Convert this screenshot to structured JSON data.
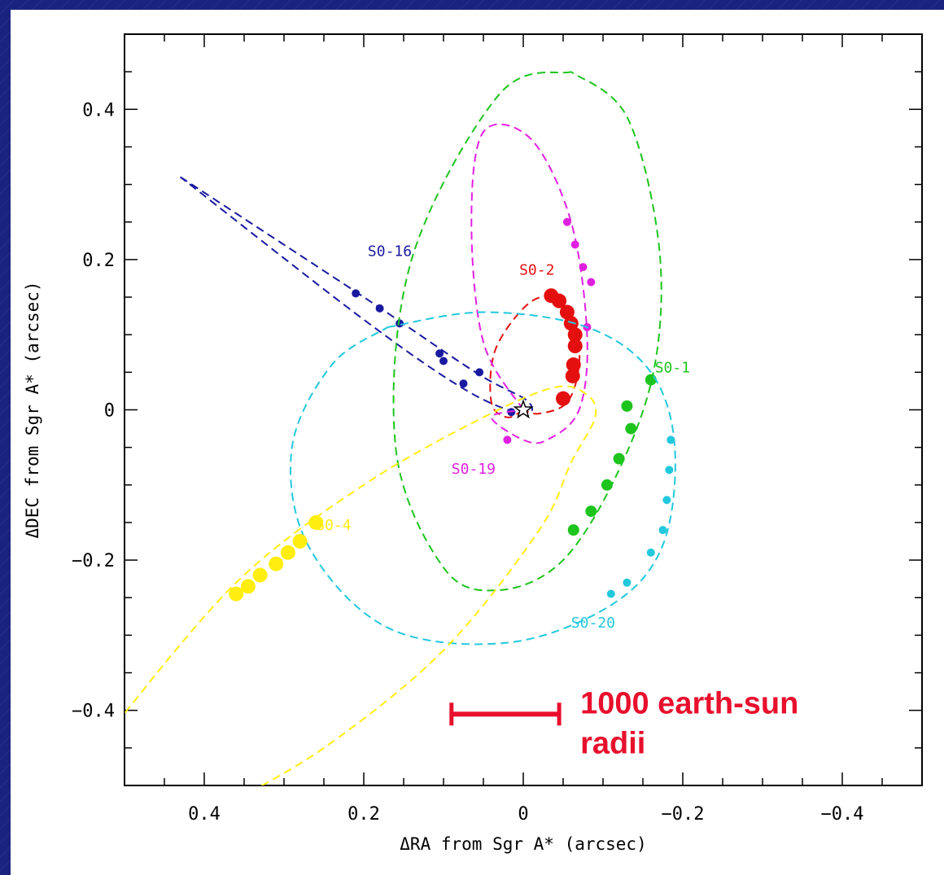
{
  "chart_data": {
    "type": "scatter",
    "xlabel": "ΔRA from Sgr A* (arcsec)",
    "ylabel": "ΔDEC from Sgr A* (arcsec)",
    "xlim": [
      0.5,
      -0.5
    ],
    "ylim": [
      -0.5,
      0.5
    ],
    "x_ticks": [
      0.4,
      0.2,
      0,
      -0.2,
      -0.4
    ],
    "x_tick_labels": [
      "0.4",
      "0.2",
      "0",
      "−0.2",
      "−0.4"
    ],
    "y_ticks": [
      0.4,
      0.2,
      0,
      -0.2,
      -0.4
    ],
    "y_tick_labels": [
      "0.4",
      "0.2",
      "0",
      "−0.2",
      "−0.4"
    ],
    "center_marker": [
      0,
      0
    ],
    "series": [
      {
        "name": "S0-16",
        "color": "#1a1aa0",
        "marker_size": 5,
        "orbit": [
          [
            0.43,
            0.31
          ],
          [
            0.2,
            0.15
          ],
          [
            0.06,
            0.05
          ],
          [
            -0.005,
            0.012
          ],
          [
            0.0,
            -0.005
          ],
          [
            0.07,
            0.025
          ],
          [
            0.2,
            0.12
          ],
          [
            0.43,
            0.31
          ]
        ],
        "points": [
          [
            0.21,
            0.155
          ],
          [
            0.18,
            0.135
          ],
          [
            0.155,
            0.115
          ],
          [
            0.105,
            0.075
          ],
          [
            0.1,
            0.065
          ],
          [
            0.075,
            0.035
          ],
          [
            0.055,
            0.05
          ],
          [
            0.015,
            -0.003
          ]
        ],
        "label_pos": [
          0.195,
          0.205
        ]
      },
      {
        "name": "S0-2",
        "color": "#e41010",
        "marker_size": 9,
        "orbit": [
          [
            0.0,
            0.0
          ],
          [
            0.02,
            -0.01
          ],
          [
            0.04,
            0.01
          ],
          [
            0.035,
            0.08
          ],
          [
            -0.005,
            0.14
          ],
          [
            -0.04,
            0.15
          ],
          [
            -0.065,
            0.12
          ],
          [
            -0.07,
            0.06
          ],
          [
            -0.055,
            0.01
          ],
          [
            -0.02,
            -0.005
          ],
          [
            0.0,
            0.0
          ]
        ],
        "points": [
          [
            -0.035,
            0.152
          ],
          [
            -0.045,
            0.145
          ],
          [
            -0.055,
            0.13
          ],
          [
            -0.06,
            0.115
          ],
          [
            -0.065,
            0.1
          ],
          [
            -0.065,
            0.085
          ],
          [
            -0.063,
            0.06
          ],
          [
            -0.062,
            0.045
          ],
          [
            -0.05,
            0.015
          ]
        ],
        "label_pos": [
          0.005,
          0.18
        ]
      },
      {
        "name": "S0-1",
        "color": "#1ec41e",
        "marker_size": 7,
        "orbit": [
          [
            -0.06,
            0.45
          ],
          [
            0.03,
            0.42
          ],
          [
            0.14,
            0.2
          ],
          [
            0.16,
            -0.05
          ],
          [
            0.1,
            -0.21
          ],
          [
            0.03,
            -0.24
          ],
          [
            -0.05,
            -0.2
          ],
          [
            -0.12,
            -0.08
          ],
          [
            -0.165,
            0.06
          ],
          [
            -0.17,
            0.22
          ],
          [
            -0.13,
            0.39
          ],
          [
            -0.06,
            0.45
          ]
        ],
        "points": [
          [
            -0.16,
            0.04
          ],
          [
            -0.13,
            0.005
          ],
          [
            -0.135,
            -0.025
          ],
          [
            -0.12,
            -0.065
          ],
          [
            -0.105,
            -0.1
          ],
          [
            -0.085,
            -0.135
          ],
          [
            -0.063,
            -0.16
          ]
        ],
        "label_pos": [
          -0.165,
          0.05
        ]
      },
      {
        "name": "S0-19",
        "color": "#e020e0",
        "marker_size": 5,
        "orbit": [
          [
            0.0,
            0.0
          ],
          [
            0.05,
            0.09
          ],
          [
            0.065,
            0.25
          ],
          [
            0.05,
            0.37
          ],
          [
            -0.01,
            0.36
          ],
          [
            -0.06,
            0.25
          ],
          [
            -0.08,
            0.1
          ],
          [
            -0.07,
            0.0
          ],
          [
            -0.03,
            -0.04
          ],
          [
            0.0,
            -0.04
          ],
          [
            0.04,
            -0.01
          ],
          [
            0.0,
            0.0
          ]
        ],
        "points": [
          [
            -0.055,
            0.25
          ],
          [
            -0.065,
            0.22
          ],
          [
            -0.075,
            0.19
          ],
          [
            -0.085,
            0.17
          ],
          [
            -0.08,
            0.11
          ],
          [
            0.02,
            -0.04
          ]
        ],
        "label_pos": [
          0.09,
          -0.085
        ]
      },
      {
        "name": "S0-20",
        "color": "#22c8dc",
        "marker_size": 5,
        "orbit": [
          [
            0.17,
            0.11
          ],
          [
            0.05,
            0.13
          ],
          [
            -0.08,
            0.11
          ],
          [
            -0.16,
            0.05
          ],
          [
            -0.19,
            -0.05
          ],
          [
            -0.175,
            -0.18
          ],
          [
            -0.11,
            -0.26
          ],
          [
            0.02,
            -0.31
          ],
          [
            0.17,
            -0.29
          ],
          [
            0.27,
            -0.18
          ],
          [
            0.29,
            -0.05
          ],
          [
            0.24,
            0.06
          ],
          [
            0.17,
            0.11
          ]
        ],
        "points": [
          [
            -0.185,
            -0.04
          ],
          [
            -0.183,
            -0.08
          ],
          [
            -0.18,
            -0.12
          ],
          [
            -0.175,
            -0.16
          ],
          [
            -0.16,
            -0.19
          ],
          [
            -0.13,
            -0.23
          ],
          [
            -0.11,
            -0.245
          ]
        ],
        "label_pos": [
          -0.06,
          -0.29
        ]
      },
      {
        "name": "S0-4",
        "color": "#ffee10",
        "marker_size": 9,
        "orbit": [
          [
            0.52,
            -0.43
          ],
          [
            0.36,
            -0.23
          ],
          [
            0.2,
            -0.1
          ],
          [
            0.05,
            -0.01
          ],
          [
            -0.04,
            0.03
          ],
          [
            -0.08,
            0.02
          ],
          [
            -0.09,
            -0.01
          ],
          [
            -0.06,
            -0.07
          ],
          [
            -0.02,
            -0.16
          ],
          [
            0.1,
            -0.32
          ],
          [
            0.25,
            -0.45
          ],
          [
            0.38,
            -0.53
          ]
        ],
        "points": [
          [
            0.36,
            -0.245
          ],
          [
            0.345,
            -0.235
          ],
          [
            0.33,
            -0.22
          ],
          [
            0.31,
            -0.205
          ],
          [
            0.295,
            -0.19
          ],
          [
            0.28,
            -0.175
          ],
          [
            0.26,
            -0.15
          ]
        ],
        "label_pos": [
          0.26,
          -0.16
        ]
      }
    ],
    "scale_bar": {
      "label": "1000 earth-sun radii",
      "from_x": 0.09,
      "to_x": -0.045,
      "y": -0.405,
      "color": "#e8102d"
    }
  },
  "scale_text": {
    "line1": "1000 earth-sun",
    "line2": "radii"
  }
}
